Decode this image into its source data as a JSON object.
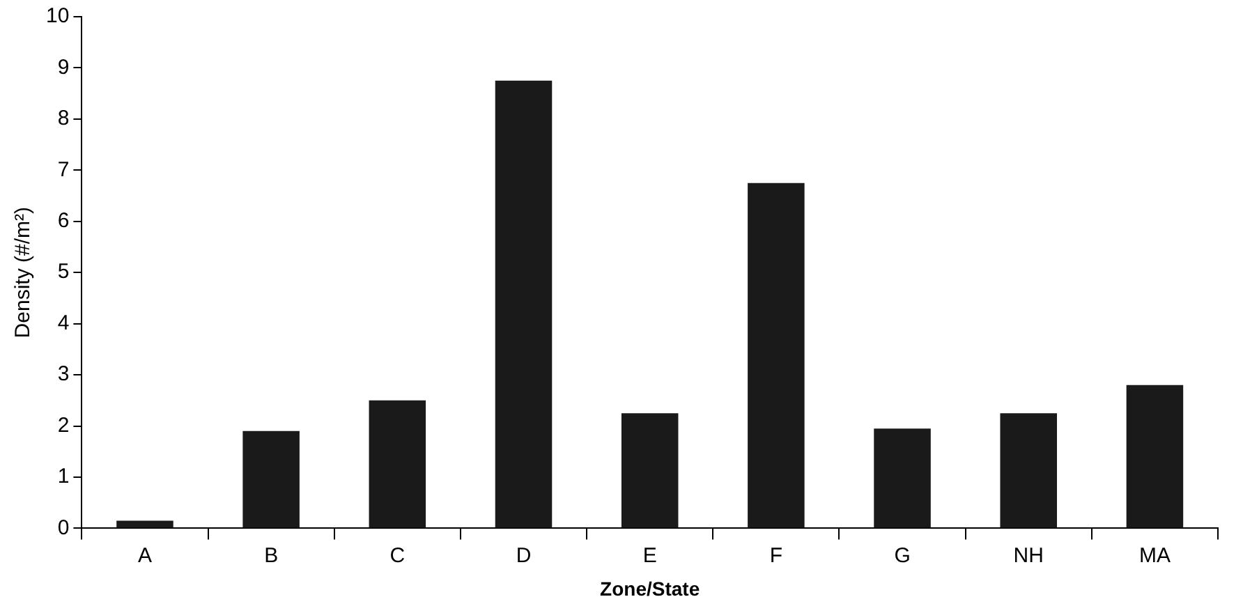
{
  "chart_data": {
    "type": "bar",
    "xlabel": "Zone/State",
    "ylabel": "Density (#/m²)",
    "categories": [
      "A",
      "B",
      "C",
      "D",
      "E",
      "F",
      "G",
      "NH",
      "MA"
    ],
    "values": [
      0.15,
      1.9,
      2.5,
      8.75,
      2.25,
      6.75,
      1.95,
      2.25,
      2.8
    ],
    "color": "#1a1a1a",
    "ylim": [
      0,
      10
    ],
    "yticks": [
      0,
      1,
      2,
      3,
      4,
      5,
      6,
      7,
      8,
      9,
      10
    ],
    "grid": false,
    "legend": false
  }
}
